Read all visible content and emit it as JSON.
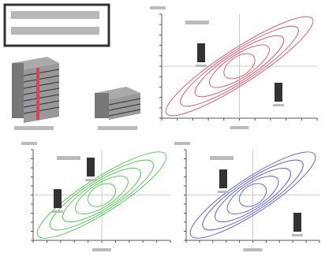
{
  "figure": {
    "loop_colors": [
      "#d9435a",
      "#3cc43c",
      "#4a4ad8"
    ]
  }
}
